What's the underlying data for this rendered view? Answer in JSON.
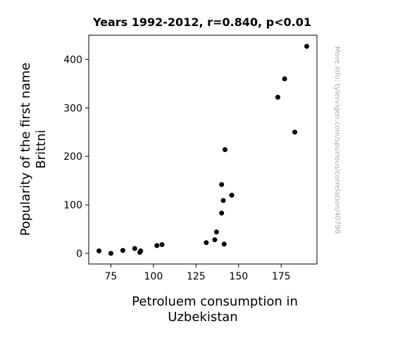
{
  "chart_data": {
    "type": "scatter",
    "title": "Years 1992-2012, r=0.840, p<0.01",
    "xlabel": [
      "Petroluem consumption in",
      "Uzbekistan"
    ],
    "ylabel": [
      "Popularity of the first name",
      "Brittni"
    ],
    "watermark": "More info: tylervigen.com/spurious/correlation/40798",
    "xlim": [
      62,
      196
    ],
    "ylim": [
      -22,
      450
    ],
    "xticks": [
      75,
      100,
      125,
      150,
      175
    ],
    "yticks": [
      0,
      100,
      200,
      300,
      400
    ],
    "grid": false,
    "point_color": "#000000",
    "points": [
      {
        "x": 68,
        "y": 5
      },
      {
        "x": 75,
        "y": 0
      },
      {
        "x": 82,
        "y": 6
      },
      {
        "x": 89,
        "y": 10
      },
      {
        "x": 92,
        "y": 2
      },
      {
        "x": 92.5,
        "y": 5
      },
      {
        "x": 102,
        "y": 16
      },
      {
        "x": 105,
        "y": 18
      },
      {
        "x": 131,
        "y": 22
      },
      {
        "x": 136,
        "y": 28
      },
      {
        "x": 137,
        "y": 44
      },
      {
        "x": 140,
        "y": 142
      },
      {
        "x": 140,
        "y": 83
      },
      {
        "x": 141,
        "y": 109
      },
      {
        "x": 141.5,
        "y": 19
      },
      {
        "x": 142,
        "y": 214
      },
      {
        "x": 146,
        "y": 120
      },
      {
        "x": 173,
        "y": 322
      },
      {
        "x": 177,
        "y": 360
      },
      {
        "x": 183,
        "y": 250
      },
      {
        "x": 190,
        "y": 427
      }
    ]
  }
}
